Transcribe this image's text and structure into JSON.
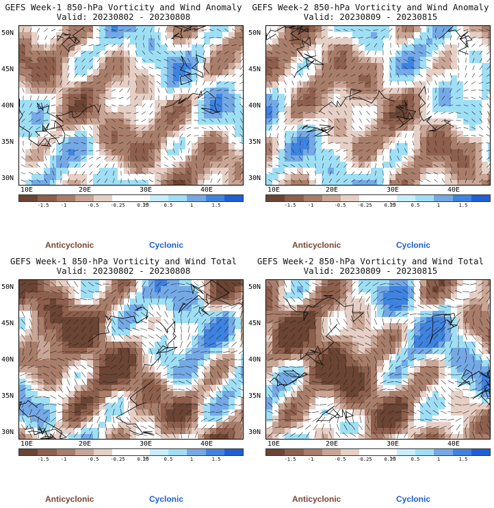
{
  "panels": [
    {
      "title1": "GEFS Week-1 850-hPa Vorticity and Wind Anomaly",
      "title2": "Valid: 20230802 - 20230808",
      "mode": "anomaly",
      "seed": 11
    },
    {
      "title1": "GEFS Week-2 850-hPa Vorticity and Wind Anomaly",
      "title2": "Valid: 20230809 - 20230815",
      "mode": "anomaly",
      "seed": 23
    },
    {
      "title1": "GEFS Week-1 850-hPa Vorticity and Wind Total",
      "title2": "Valid: 20230802 - 20230808",
      "mode": "total",
      "seed": 37
    },
    {
      "title1": "GEFS Week-2 850-hPa Vorticity and Wind Total",
      "title2": "Valid: 20230809 - 20230815",
      "mode": "total",
      "seed": 51
    }
  ],
  "lat_labels": [
    "50N",
    "45N",
    "40N",
    "35N",
    "30N"
  ],
  "lon_labels": [
    "10E",
    "20E",
    "30E",
    "40E"
  ],
  "colorbar": {
    "colors": [
      "#6b4434",
      "#8d5f4c",
      "#a87d6a",
      "#c9a595",
      "#e6cfc5",
      "#ffffff",
      "#ffffff",
      "#c8eefa",
      "#9fdff5",
      "#74a9e6",
      "#3f83e0",
      "#1f5fd6"
    ],
    "labels": [
      "-1.5",
      "-1",
      "-0.5",
      "-0.25",
      "0.25",
      "0.5",
      "1",
      "1.5"
    ],
    "scale": "10"
  },
  "legend": {
    "anticyclonic": "Anticyclonic",
    "cyclonic": "Cyclonic"
  }
}
